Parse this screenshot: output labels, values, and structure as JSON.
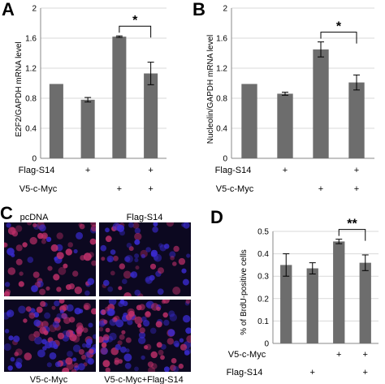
{
  "panel_letters": {
    "a": "A",
    "b": "B",
    "c": "C",
    "d": "D"
  },
  "conditions": {
    "flag_label": "Flag-S14",
    "myc_label": "V5-c-Myc",
    "plus": "+"
  },
  "chart_data": [
    {
      "id": "A",
      "type": "bar",
      "ylabel": "E2F2/GAPDH mRNA level",
      "ylim": [
        0,
        2
      ],
      "yticks": [
        "0",
        "0.4",
        "0.8",
        "1.2",
        "1.6",
        "2"
      ],
      "values": [
        0.99,
        0.78,
        1.62,
        1.13
      ],
      "errors": [
        0.0,
        0.03,
        0.01,
        0.15
      ],
      "flag_s14": [
        false,
        true,
        false,
        true
      ],
      "v5_c_myc": [
        false,
        false,
        true,
        true
      ],
      "significance": {
        "from": 2,
        "to": 3,
        "label": "*"
      },
      "bar_color": "#6d6d6d"
    },
    {
      "id": "B",
      "type": "bar",
      "ylabel": "Nucleolin/GAPDH mRNA level",
      "ylim": [
        0,
        2
      ],
      "yticks": [
        "0",
        "0.4",
        "0.8",
        "1.2",
        "1.6",
        "2"
      ],
      "values": [
        0.99,
        0.86,
        1.45,
        1.01
      ],
      "errors": [
        0.0,
        0.02,
        0.1,
        0.1
      ],
      "flag_s14": [
        false,
        true,
        false,
        true
      ],
      "v5_c_myc": [
        false,
        false,
        true,
        true
      ],
      "significance": {
        "from": 2,
        "to": 3,
        "label": "*"
      },
      "bar_color": "#6d6d6d"
    },
    {
      "id": "D",
      "type": "bar",
      "ylabel": "% of BrdU-positive cells",
      "ylim": [
        0,
        0.5
      ],
      "yticks": [
        "0",
        "0.1",
        "0.2",
        "0.3",
        "0.4",
        "0.5"
      ],
      "values": [
        0.35,
        0.335,
        0.455,
        0.36
      ],
      "errors": [
        0.05,
        0.025,
        0.01,
        0.035
      ],
      "v5_c_myc": [
        false,
        false,
        true,
        true
      ],
      "flag_s14": [
        false,
        true,
        false,
        true
      ],
      "significance": {
        "from": 2,
        "to": 3,
        "label": "**"
      },
      "bar_color": "#6d6d6d"
    }
  ],
  "micrographs": [
    {
      "label": "pcDNA"
    },
    {
      "label": "Flag-S14"
    },
    {
      "label": "V5-c-Myc"
    },
    {
      "label": "V5-c-Myc+Flag-S14"
    }
  ],
  "colors": {
    "bar": "#6d6d6d",
    "nucleus_red": "#c0306a",
    "nucleus_blue": "#3a2bd0",
    "micro_bg": "#0c0820"
  }
}
